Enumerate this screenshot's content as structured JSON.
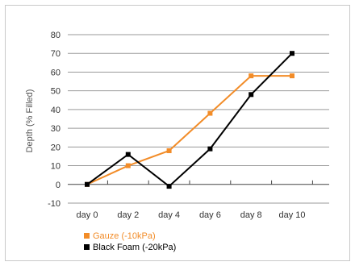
{
  "chart_data": {
    "type": "line",
    "title": "",
    "xlabel": "",
    "ylabel": "Depth (% Filled)",
    "categories": [
      "day 0",
      "day 2",
      "day 4",
      "day 6",
      "day 8",
      "day 10"
    ],
    "ylim": [
      -10,
      80
    ],
    "yticks": [
      "80",
      "70",
      "60",
      "50",
      "40",
      "30",
      "20",
      "10",
      "0",
      "-10"
    ],
    "grid": true,
    "legend_position": "bottom-left",
    "series": [
      {
        "name": "Gauze (-10kPa)",
        "color": "#f28c28",
        "marker": "square",
        "values": [
          0,
          10,
          18,
          38,
          58,
          58
        ]
      },
      {
        "name": "Black Foam (-20kPa)",
        "color": "#000000",
        "marker": "square",
        "values": [
          0,
          16,
          -1,
          19,
          48,
          70
        ]
      }
    ]
  }
}
